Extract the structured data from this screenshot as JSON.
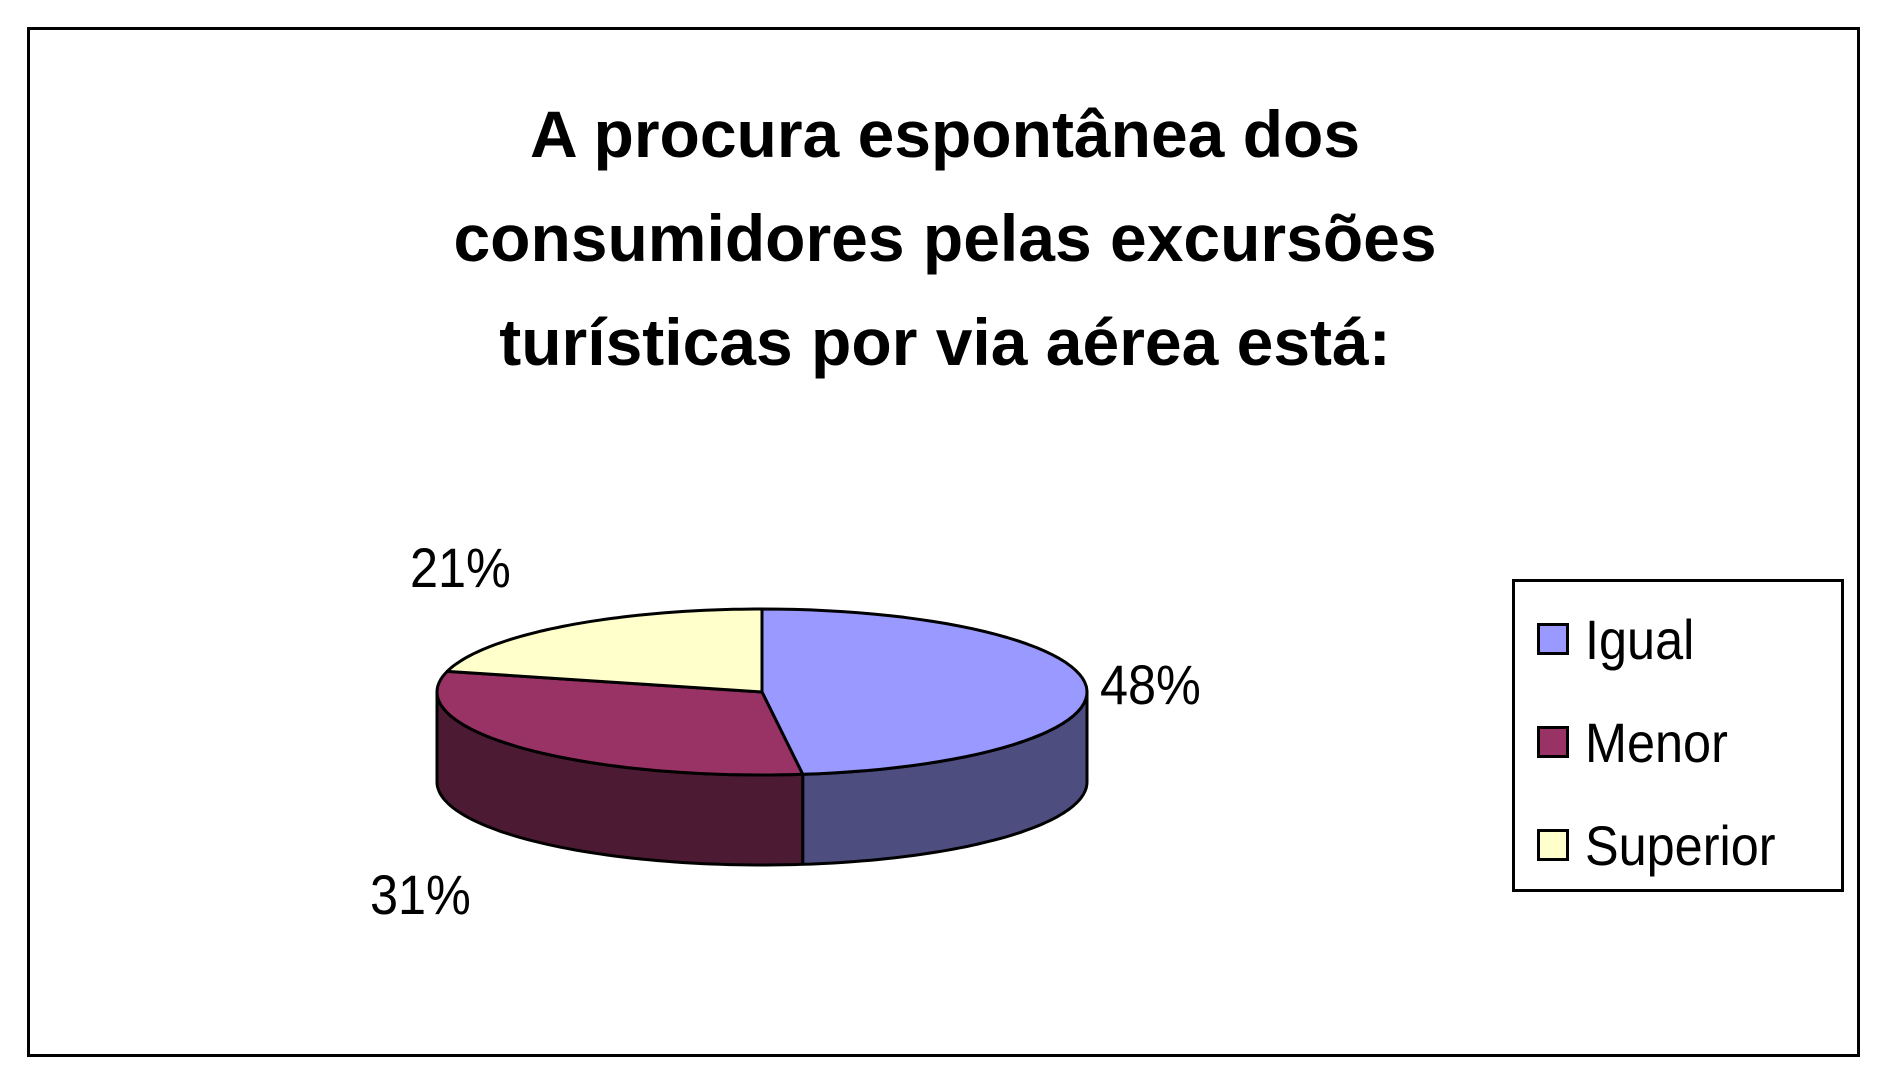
{
  "chart_data": {
    "type": "pie",
    "title_lines": [
      "A procura espontânea dos",
      "consumidores pelas excursões",
      "turísticas por via aérea está:"
    ],
    "categories": [
      "Igual",
      "Menor",
      "Superior"
    ],
    "values": [
      48,
      31,
      21
    ],
    "data_labels": [
      "48%",
      "31%",
      "21%"
    ],
    "colors": [
      "#9999FF",
      "#993366",
      "#FFFFCC"
    ],
    "side_colors": [
      "#4D4D80",
      "#4D1A33",
      "#808066"
    ],
    "style": "3d",
    "legend_position": "right"
  }
}
